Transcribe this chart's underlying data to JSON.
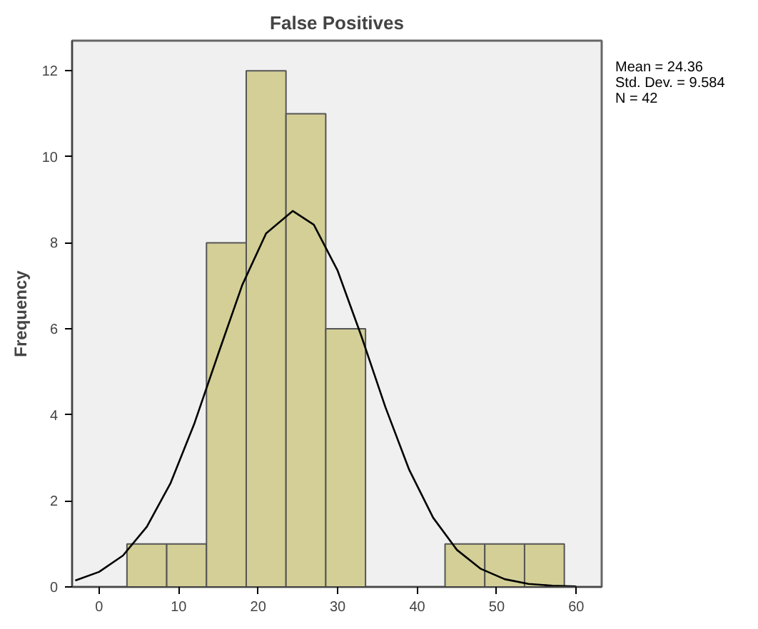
{
  "chart_data": {
    "type": "histogram",
    "title": "False Positives",
    "ylabel": "Frequency",
    "bins": [
      3.5,
      8.5,
      13.5,
      18.5,
      23.5,
      28.5,
      33.5,
      38.5,
      43.5,
      48.5,
      53.5,
      58.5
    ],
    "values": [
      1,
      1,
      8,
      12,
      11,
      6,
      0,
      0,
      1,
      1,
      1
    ],
    "color": "#d3cf97",
    "series": [
      {
        "type": "line",
        "color": "#000000",
        "x": [
          -3,
          0,
          3,
          6,
          9,
          12,
          15,
          18,
          21,
          24.36,
          27,
          30,
          33,
          36,
          39,
          42,
          45,
          48,
          51,
          54,
          57,
          60
        ],
        "values": [
          0.15,
          0.35,
          0.73,
          1.4,
          2.42,
          3.81,
          5.43,
          7.02,
          8.22,
          8.74,
          8.42,
          7.35,
          5.82,
          4.18,
          2.72,
          1.61,
          0.86,
          0.42,
          0.18,
          0.07,
          0.03,
          0.01
        ]
      }
    ],
    "xlim": [
      -3.4,
      63.2
    ],
    "ylim": [
      0,
      12.7
    ],
    "xticks": [
      0,
      10,
      20,
      30,
      40,
      50,
      60
    ],
    "yticks": [
      0,
      2,
      4,
      6,
      8,
      10,
      12
    ],
    "annotations": [
      "Mean = 24.36",
      "Std. Dev. = 9.584",
      "N = 42"
    ],
    "grid": false
  }
}
